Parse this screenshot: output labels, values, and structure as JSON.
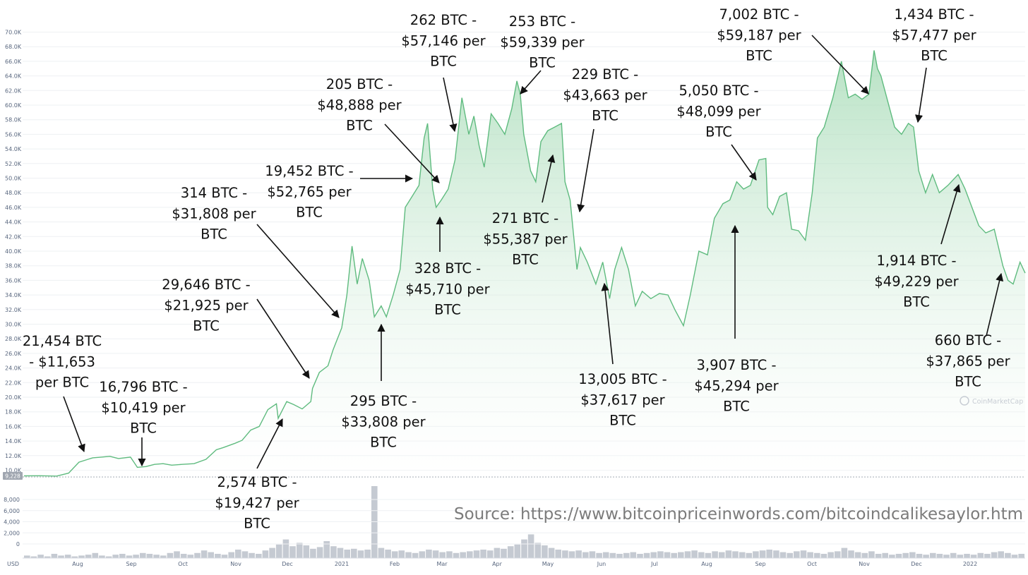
{
  "chart_data": {
    "type": "area",
    "x_axis": {
      "month_labels": [
        "Aug",
        "Sep",
        "Oct",
        "Nov",
        "Dec",
        "2021",
        "Feb",
        "Mar",
        "Apr",
        "May",
        "Jun",
        "Jul",
        "Aug",
        "Sep",
        "Oct",
        "Nov",
        "Dec",
        "2022"
      ]
    },
    "y_axis": {
      "tick_labels": [
        "10.0K",
        "12.0K",
        "14.0K",
        "16.0K",
        "18.0K",
        "20.0K",
        "22.0K",
        "24.0K",
        "26.0K",
        "28.0K",
        "30.0K",
        "32.0K",
        "34.0K",
        "36.0K",
        "38.0K",
        "40.0K",
        "42.0K",
        "44.0K",
        "46.0K",
        "48.0K",
        "50.0K",
        "52.0K",
        "54.0K",
        "56.0K",
        "58.0K",
        "60.0K",
        "62.0K",
        "64.0K",
        "66.0K",
        "68.0K",
        "70.0K"
      ],
      "ylim": [
        9228,
        70000
      ]
    },
    "current_price_label": "9,228",
    "volume_axis": {
      "tick_labels": [
        "0",
        "2,000",
        "4,000",
        "6,000",
        "8,000"
      ],
      "currency_label": "USD"
    },
    "series": [
      {
        "x": [
          "2020-07-01",
          "2020-07-10",
          "2020-07-20",
          "2020-07-27",
          "2020-08-02",
          "2020-08-10",
          "2020-08-15",
          "2020-08-20",
          "2020-08-25",
          "2020-09-01",
          "2020-09-03",
          "2020-09-05",
          "2020-09-10",
          "2020-09-15",
          "2020-09-20",
          "2020-09-25",
          "2020-10-01",
          "2020-10-08",
          "2020-10-15",
          "2020-10-21",
          "2020-10-25",
          "2020-11-01",
          "2020-11-05",
          "2020-11-10",
          "2020-11-15",
          "2020-11-20",
          "2020-11-25",
          "2020-11-26",
          "2020-12-01",
          "2020-12-05",
          "2020-12-10",
          "2020-12-15",
          "2020-12-16",
          "2020-12-20",
          "2020-12-25",
          "2020-12-28",
          "2021-01-02",
          "2021-01-05",
          "2021-01-08",
          "2021-01-11",
          "2021-01-14",
          "2021-01-18",
          "2021-01-21",
          "2021-01-25",
          "2021-01-28",
          "2021-02-01",
          "2021-02-05",
          "2021-02-08",
          "2021-02-12",
          "2021-02-16",
          "2021-02-19",
          "2021-02-21",
          "2021-02-24",
          "2021-02-26",
          "2021-03-01",
          "2021-03-05",
          "2021-03-09",
          "2021-03-13",
          "2021-03-17",
          "2021-03-20",
          "2021-03-23",
          "2021-03-26",
          "2021-03-30",
          "2021-04-03",
          "2021-04-07",
          "2021-04-11",
          "2021-04-14",
          "2021-04-16",
          "2021-04-18",
          "2021-04-22",
          "2021-04-25",
          "2021-04-28",
          "2021-05-02",
          "2021-05-06",
          "2021-05-10",
          "2021-05-12",
          "2021-05-15",
          "2021-05-19",
          "2021-05-21",
          "2021-05-25",
          "2021-05-30",
          "2021-06-03",
          "2021-06-07",
          "2021-06-10",
          "2021-06-14",
          "2021-06-18",
          "2021-06-22",
          "2021-06-26",
          "2021-07-01",
          "2021-07-06",
          "2021-07-11",
          "2021-07-15",
          "2021-07-20",
          "2021-07-24",
          "2021-07-29",
          "2021-08-03",
          "2021-08-07",
          "2021-08-12",
          "2021-08-16",
          "2021-08-20",
          "2021-08-24",
          "2021-08-28",
          "2021-09-02",
          "2021-09-06",
          "2021-09-07",
          "2021-09-10",
          "2021-09-14",
          "2021-09-18",
          "2021-09-21",
          "2021-09-25",
          "2021-09-29",
          "2021-10-03",
          "2021-10-06",
          "2021-10-10",
          "2021-10-15",
          "2021-10-20",
          "2021-10-24",
          "2021-10-28",
          "2021-11-01",
          "2021-11-05",
          "2021-11-08",
          "2021-11-10",
          "2021-11-12",
          "2021-11-16",
          "2021-11-20",
          "2021-11-24",
          "2021-11-28",
          "2021-12-01",
          "2021-12-04",
          "2021-12-08",
          "2021-12-12",
          "2021-12-16",
          "2021-12-21",
          "2021-12-27",
          "2021-12-31",
          "2022-01-04",
          "2022-01-08",
          "2022-01-12",
          "2022-01-17",
          "2022-01-22",
          "2022-01-25",
          "2022-01-28",
          "2022-02-01",
          "2022-02-04"
        ],
        "values": [
          9228,
          9250,
          9200,
          9600,
          11100,
          11700,
          11800,
          11900,
          11600,
          11800,
          11100,
          10400,
          10500,
          10800,
          10900,
          10700,
          10800,
          10900,
          11500,
          12800,
          13100,
          13700,
          14100,
          15500,
          16000,
          18300,
          19100,
          17100,
          19400,
          19000,
          18400,
          19400,
          21200,
          23400,
          24300,
          26500,
          29500,
          34000,
          40700,
          35500,
          39000,
          36000,
          31000,
          32500,
          31000,
          34000,
          37500,
          46000,
          47500,
          49000,
          55500,
          57500,
          48500,
          46000,
          47000,
          48500,
          52500,
          61000,
          56000,
          58500,
          54500,
          51500,
          58800,
          57500,
          56000,
          59500,
          63300,
          61500,
          56000,
          51000,
          49500,
          55000,
          56500,
          57000,
          57500,
          49500,
          47000,
          37500,
          40500,
          38500,
          35500,
          38500,
          33500,
          37500,
          40500,
          37500,
          32500,
          34500,
          33500,
          34200,
          34000,
          32000,
          29800,
          34000,
          40000,
          39500,
          44500,
          46500,
          47000,
          49500,
          48500,
          49000,
          52500,
          52700,
          46000,
          45000,
          47500,
          48000,
          43000,
          42800,
          41500,
          48000,
          55500,
          57000,
          61000,
          66000,
          61000,
          61500,
          60800,
          61500,
          67500,
          65000,
          64000,
          60500,
          57000,
          56000,
          57500,
          57000,
          51000,
          48000,
          50500,
          48000,
          49000,
          50500,
          48500,
          46000,
          43500,
          42500,
          43000,
          38000,
          36000,
          35500,
          38500,
          37000
        ]
      }
    ],
    "volume": [
      3,
      2,
      4,
      2,
      5,
      3,
      4,
      2,
      3,
      4,
      6,
      3,
      2,
      4,
      5,
      3,
      4,
      6,
      5,
      4,
      3,
      6,
      8,
      5,
      4,
      6,
      9,
      7,
      5,
      4,
      7,
      10,
      8,
      6,
      5,
      9,
      12,
      16,
      22,
      14,
      18,
      15,
      11,
      13,
      20,
      14,
      12,
      10,
      11,
      9,
      10,
      85,
      12,
      10,
      8,
      9,
      7,
      6,
      8,
      10,
      9,
      7,
      8,
      6,
      7,
      8,
      9,
      10,
      9,
      12,
      11,
      14,
      16,
      22,
      28,
      18,
      15,
      12,
      10,
      9,
      8,
      9,
      7,
      8,
      6,
      7,
      6,
      5,
      6,
      7,
      5,
      6,
      7,
      8,
      7,
      6,
      7,
      8,
      9,
      7,
      6,
      8,
      7,
      9,
      8,
      7,
      6,
      8,
      9,
      10,
      9,
      7,
      6,
      8,
      9,
      7,
      6,
      5,
      7,
      8,
      12,
      9,
      7,
      6,
      8,
      5,
      6,
      4,
      5,
      6,
      7,
      5,
      4,
      6,
      5,
      4,
      6,
      4,
      5,
      4,
      6,
      5,
      7,
      8,
      6,
      4,
      5
    ],
    "annotations": [
      {
        "btc": "21,454 BTC",
        "sep": "-",
        "price": "$11,653",
        "per": "per BTC",
        "x": "2020-08-11",
        "y": 11653
      },
      {
        "btc": "16,796 BTC -",
        "price": "$10,419 per",
        "per": "BTC",
        "x": "2020-09-11",
        "y": 10419
      },
      {
        "btc": "2,574 BTC -",
        "price": "$19,427 per",
        "per": "BTC",
        "x": "2020-12-01",
        "y": 19427
      },
      {
        "btc": "29,646 BTC -",
        "price": "$21,925 per",
        "per": "BTC",
        "x": "2020-12-21",
        "y": 21925
      },
      {
        "btc": "314 BTC -",
        "price": "$31,808 per",
        "per": "BTC",
        "x": "2021-01-19",
        "y": 31808
      },
      {
        "btc": "295 BTC -",
        "price": "$33,808 per",
        "per": "BTC",
        "x": "2021-02-02",
        "y": 33808
      },
      {
        "btc": "19,452 BTC -",
        "price": "$52,765 per",
        "per": "BTC",
        "x": "2021-02-24",
        "y": 52765
      },
      {
        "btc": "328 BTC -",
        "price": "$45,710 per",
        "per": "BTC",
        "x": "2021-03-01",
        "y": 45710
      },
      {
        "btc": "205 BTC -",
        "price": "$48,888 per",
        "per": "BTC",
        "x": "2021-03-01",
        "y": 48888
      },
      {
        "btc": "262 BTC -",
        "price": "$57,146 per",
        "per": "BTC",
        "x": "2021-03-19",
        "y": 57146
      },
      {
        "btc": "253 BTC -",
        "price": "$59,339 per",
        "per": "BTC",
        "x": "2021-04-13",
        "y": 59339
      },
      {
        "btc": "271 BTC -",
        "price": "$55,387 per",
        "per": "BTC",
        "x": "2021-05-12",
        "y": 55387
      },
      {
        "btc": "229 BTC -",
        "price": "$43,663 per",
        "per": "BTC",
        "x": "2021-05-18",
        "y": 43663
      },
      {
        "btc": "13,005 BTC -",
        "price": "$37,617 per",
        "per": "BTC",
        "x": "2021-06-21",
        "y": 37617
      },
      {
        "btc": "3,907 BTC -",
        "price": "$45,294 per",
        "per": "BTC",
        "x": "2021-08-24",
        "y": 45294
      },
      {
        "btc": "5,050 BTC -",
        "price": "$48,099 per",
        "per": "BTC",
        "x": "2021-09-12",
        "y": 48099
      },
      {
        "btc": "7,002 BTC -",
        "price": "$59,187 per",
        "per": "BTC",
        "x": "2021-10-31",
        "y": 59187
      },
      {
        "btc": "1,434 BTC -",
        "price": "$57,477 per",
        "per": "BTC",
        "x": "2021-11-26",
        "y": 57477
      },
      {
        "btc": "1,914 BTC -",
        "price": "$49,229 per",
        "per": "BTC",
        "x": "2021-12-28",
        "y": 49229
      },
      {
        "btc": "660 BTC -",
        "price": "$37,865 per",
        "per": "BTC",
        "x": "2022-01-30",
        "y": 37865
      }
    ],
    "grid": true,
    "legend": "none"
  },
  "source_text": "Source: https://www.bitcoinpriceinwords.com/bitcoindcalikesaylor.htm",
  "watermark": "CoinMarketCap",
  "colors": {
    "line": "#5fbb7f",
    "fill_top": "#9fd8b0",
    "fill_bottom": "#ffffff",
    "volume": "#c5cad2",
    "grid": "#eef0f3",
    "badge": "#a0a6b0"
  }
}
